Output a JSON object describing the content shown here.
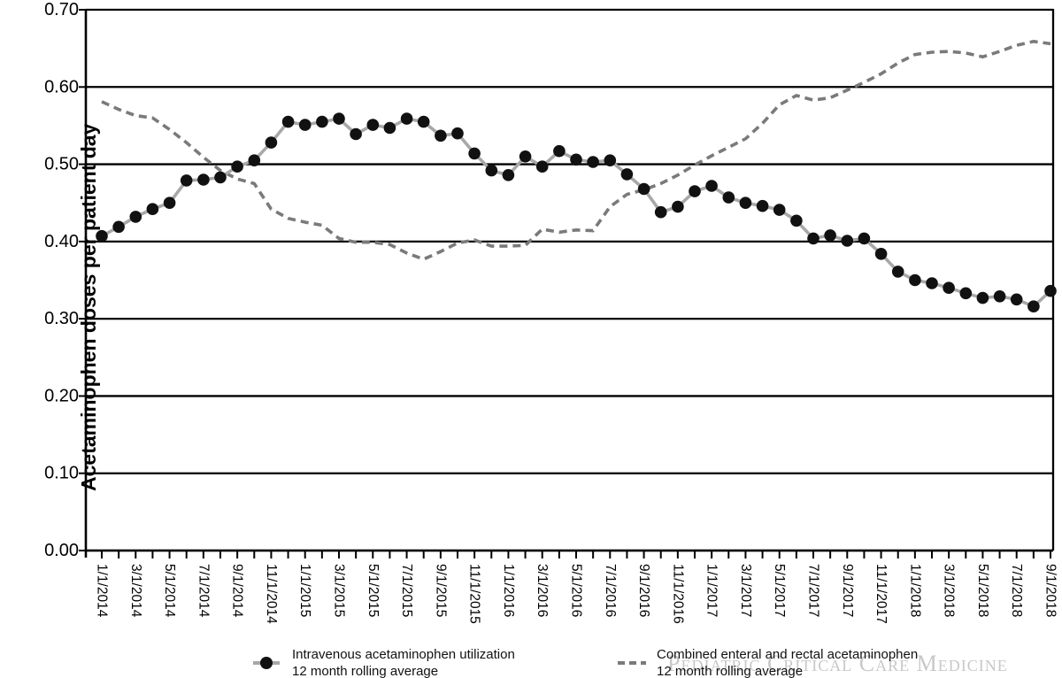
{
  "watermark": "Pediatric Critical Care Medicine",
  "colors": {
    "axis": "#000000",
    "iv_line": "#a8a8a8",
    "iv_marker": "#111111",
    "enteral_line": "#7a7a7a",
    "watermark": "#c8c8c8"
  },
  "legend": {
    "items": [
      {
        "line1": "Intravenous acetaminophen utilization",
        "line2": "12 month rolling average"
      },
      {
        "line1": "Combined enteral and rectal acetaminophen",
        "line2": "12 month rolling average"
      }
    ]
  },
  "chart_data": {
    "type": "line",
    "title": "",
    "xlabel": "",
    "ylabel": "Acetaminophen doses per patient day",
    "ylim": [
      0,
      0.7
    ],
    "grid": "horizontal black gridlines every 0.10",
    "legend_position": "bottom",
    "y_ticks": [
      "0.00",
      "0.10",
      "0.20",
      "0.30",
      "0.40",
      "0.50",
      "0.60",
      "0.70"
    ],
    "x_tick_labels": [
      "1/1/2014",
      "3/1/2014",
      "5/1/2014",
      "7/1/2014",
      "9/1/2014",
      "11/1/2014",
      "1/1/2015",
      "3/1/2015",
      "5/1/2015",
      "7/1/2015",
      "9/1/2015",
      "11/1/2015",
      "1/1/2016",
      "3/1/2016",
      "5/1/2016",
      "7/1/2016",
      "9/1/2016",
      "11/1/2016",
      "1/1/2017",
      "3/1/2017",
      "5/1/2017",
      "7/1/2017",
      "9/1/2017",
      "11/1/2017",
      "1/1/2018",
      "3/1/2018",
      "5/1/2018",
      "7/1/2018",
      "9/1/2018"
    ],
    "x": [
      "1/1/2014",
      "2/1/2014",
      "3/1/2014",
      "4/1/2014",
      "5/1/2014",
      "6/1/2014",
      "7/1/2014",
      "8/1/2014",
      "9/1/2014",
      "10/1/2014",
      "11/1/2014",
      "12/1/2014",
      "1/1/2015",
      "2/1/2015",
      "3/1/2015",
      "4/1/2015",
      "5/1/2015",
      "6/1/2015",
      "7/1/2015",
      "8/1/2015",
      "9/1/2015",
      "10/1/2015",
      "11/1/2015",
      "12/1/2015",
      "1/1/2016",
      "2/1/2016",
      "3/1/2016",
      "4/1/2016",
      "5/1/2016",
      "6/1/2016",
      "7/1/2016",
      "8/1/2016",
      "9/1/2016",
      "10/1/2016",
      "11/1/2016",
      "12/1/2016",
      "1/1/2017",
      "2/1/2017",
      "3/1/2017",
      "4/1/2017",
      "5/1/2017",
      "6/1/2017",
      "7/1/2017",
      "8/1/2017",
      "9/1/2017",
      "10/1/2017",
      "11/1/2017",
      "12/1/2017",
      "1/1/2018",
      "2/1/2018",
      "3/1/2018",
      "4/1/2018",
      "5/1/2018",
      "6/1/2018",
      "7/1/2018",
      "8/1/2018",
      "9/1/2018"
    ],
    "series": [
      {
        "name": "Intravenous acetaminophen utilization 12 month rolling average",
        "style": "solid line with filled circle markers",
        "values": [
          0.407,
          0.419,
          0.432,
          0.442,
          0.45,
          0.479,
          0.48,
          0.483,
          0.497,
          0.505,
          0.528,
          0.555,
          0.551,
          0.555,
          0.559,
          0.539,
          0.551,
          0.547,
          0.559,
          0.555,
          0.537,
          0.54,
          0.514,
          0.492,
          0.486,
          0.51,
          0.497,
          0.517,
          0.506,
          0.503,
          0.505,
          0.487,
          0.468,
          0.438,
          0.445,
          0.465,
          0.472,
          0.457,
          0.45,
          0.446,
          0.441,
          0.427,
          0.404,
          0.408,
          0.401,
          0.404,
          0.384,
          0.361,
          0.35,
          0.346,
          0.34,
          0.333,
          0.327,
          0.329,
          0.325,
          0.316,
          0.336
        ]
      },
      {
        "name": "Combined enteral and rectal acetaminophen 12 month rolling average",
        "style": "dashed line, no markers",
        "values": [
          0.581,
          0.571,
          0.563,
          0.56,
          0.545,
          0.528,
          0.509,
          0.492,
          0.481,
          0.475,
          0.442,
          0.43,
          0.425,
          0.421,
          0.404,
          0.399,
          0.399,
          0.396,
          0.385,
          0.377,
          0.387,
          0.398,
          0.402,
          0.394,
          0.394,
          0.395,
          0.416,
          0.412,
          0.415,
          0.414,
          0.445,
          0.461,
          0.467,
          0.475,
          0.486,
          0.499,
          0.511,
          0.522,
          0.533,
          0.553,
          0.577,
          0.589,
          0.583,
          0.586,
          0.596,
          0.606,
          0.617,
          0.631,
          0.642,
          0.645,
          0.646,
          0.644,
          0.639,
          0.646,
          0.654,
          0.659,
          0.656
        ]
      }
    ]
  }
}
